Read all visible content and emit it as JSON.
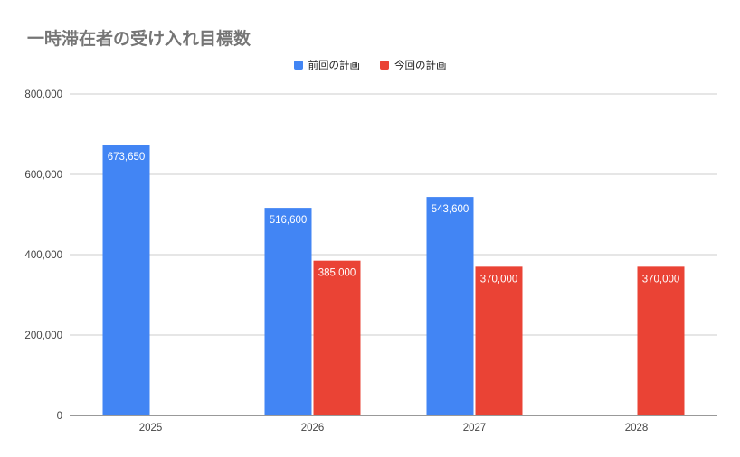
{
  "chart_data": {
    "type": "bar",
    "title": "一時滞在者の受け入れ目標数",
    "categories": [
      "2025",
      "2026",
      "2027",
      "2028"
    ],
    "series": [
      {
        "name": "前回の計画",
        "color": "#4285F4",
        "values": [
          673650,
          516600,
          543600,
          null
        ],
        "labels": [
          "673,650",
          "516,600",
          "543,600",
          null
        ]
      },
      {
        "name": "今回の計画",
        "color": "#EA4335",
        "values": [
          null,
          385000,
          370000,
          370000
        ],
        "labels": [
          null,
          "385,000",
          "370,000",
          "370,000"
        ]
      }
    ],
    "ylim": [
      0,
      800000
    ],
    "yticks": [
      0,
      200000,
      400000,
      600000,
      800000
    ],
    "ytick_labels": [
      "0",
      "200,000",
      "400,000",
      "600,000",
      "800,000"
    ],
    "legend_position": "top-center",
    "grid": true,
    "xlabel": "",
    "ylabel": ""
  }
}
